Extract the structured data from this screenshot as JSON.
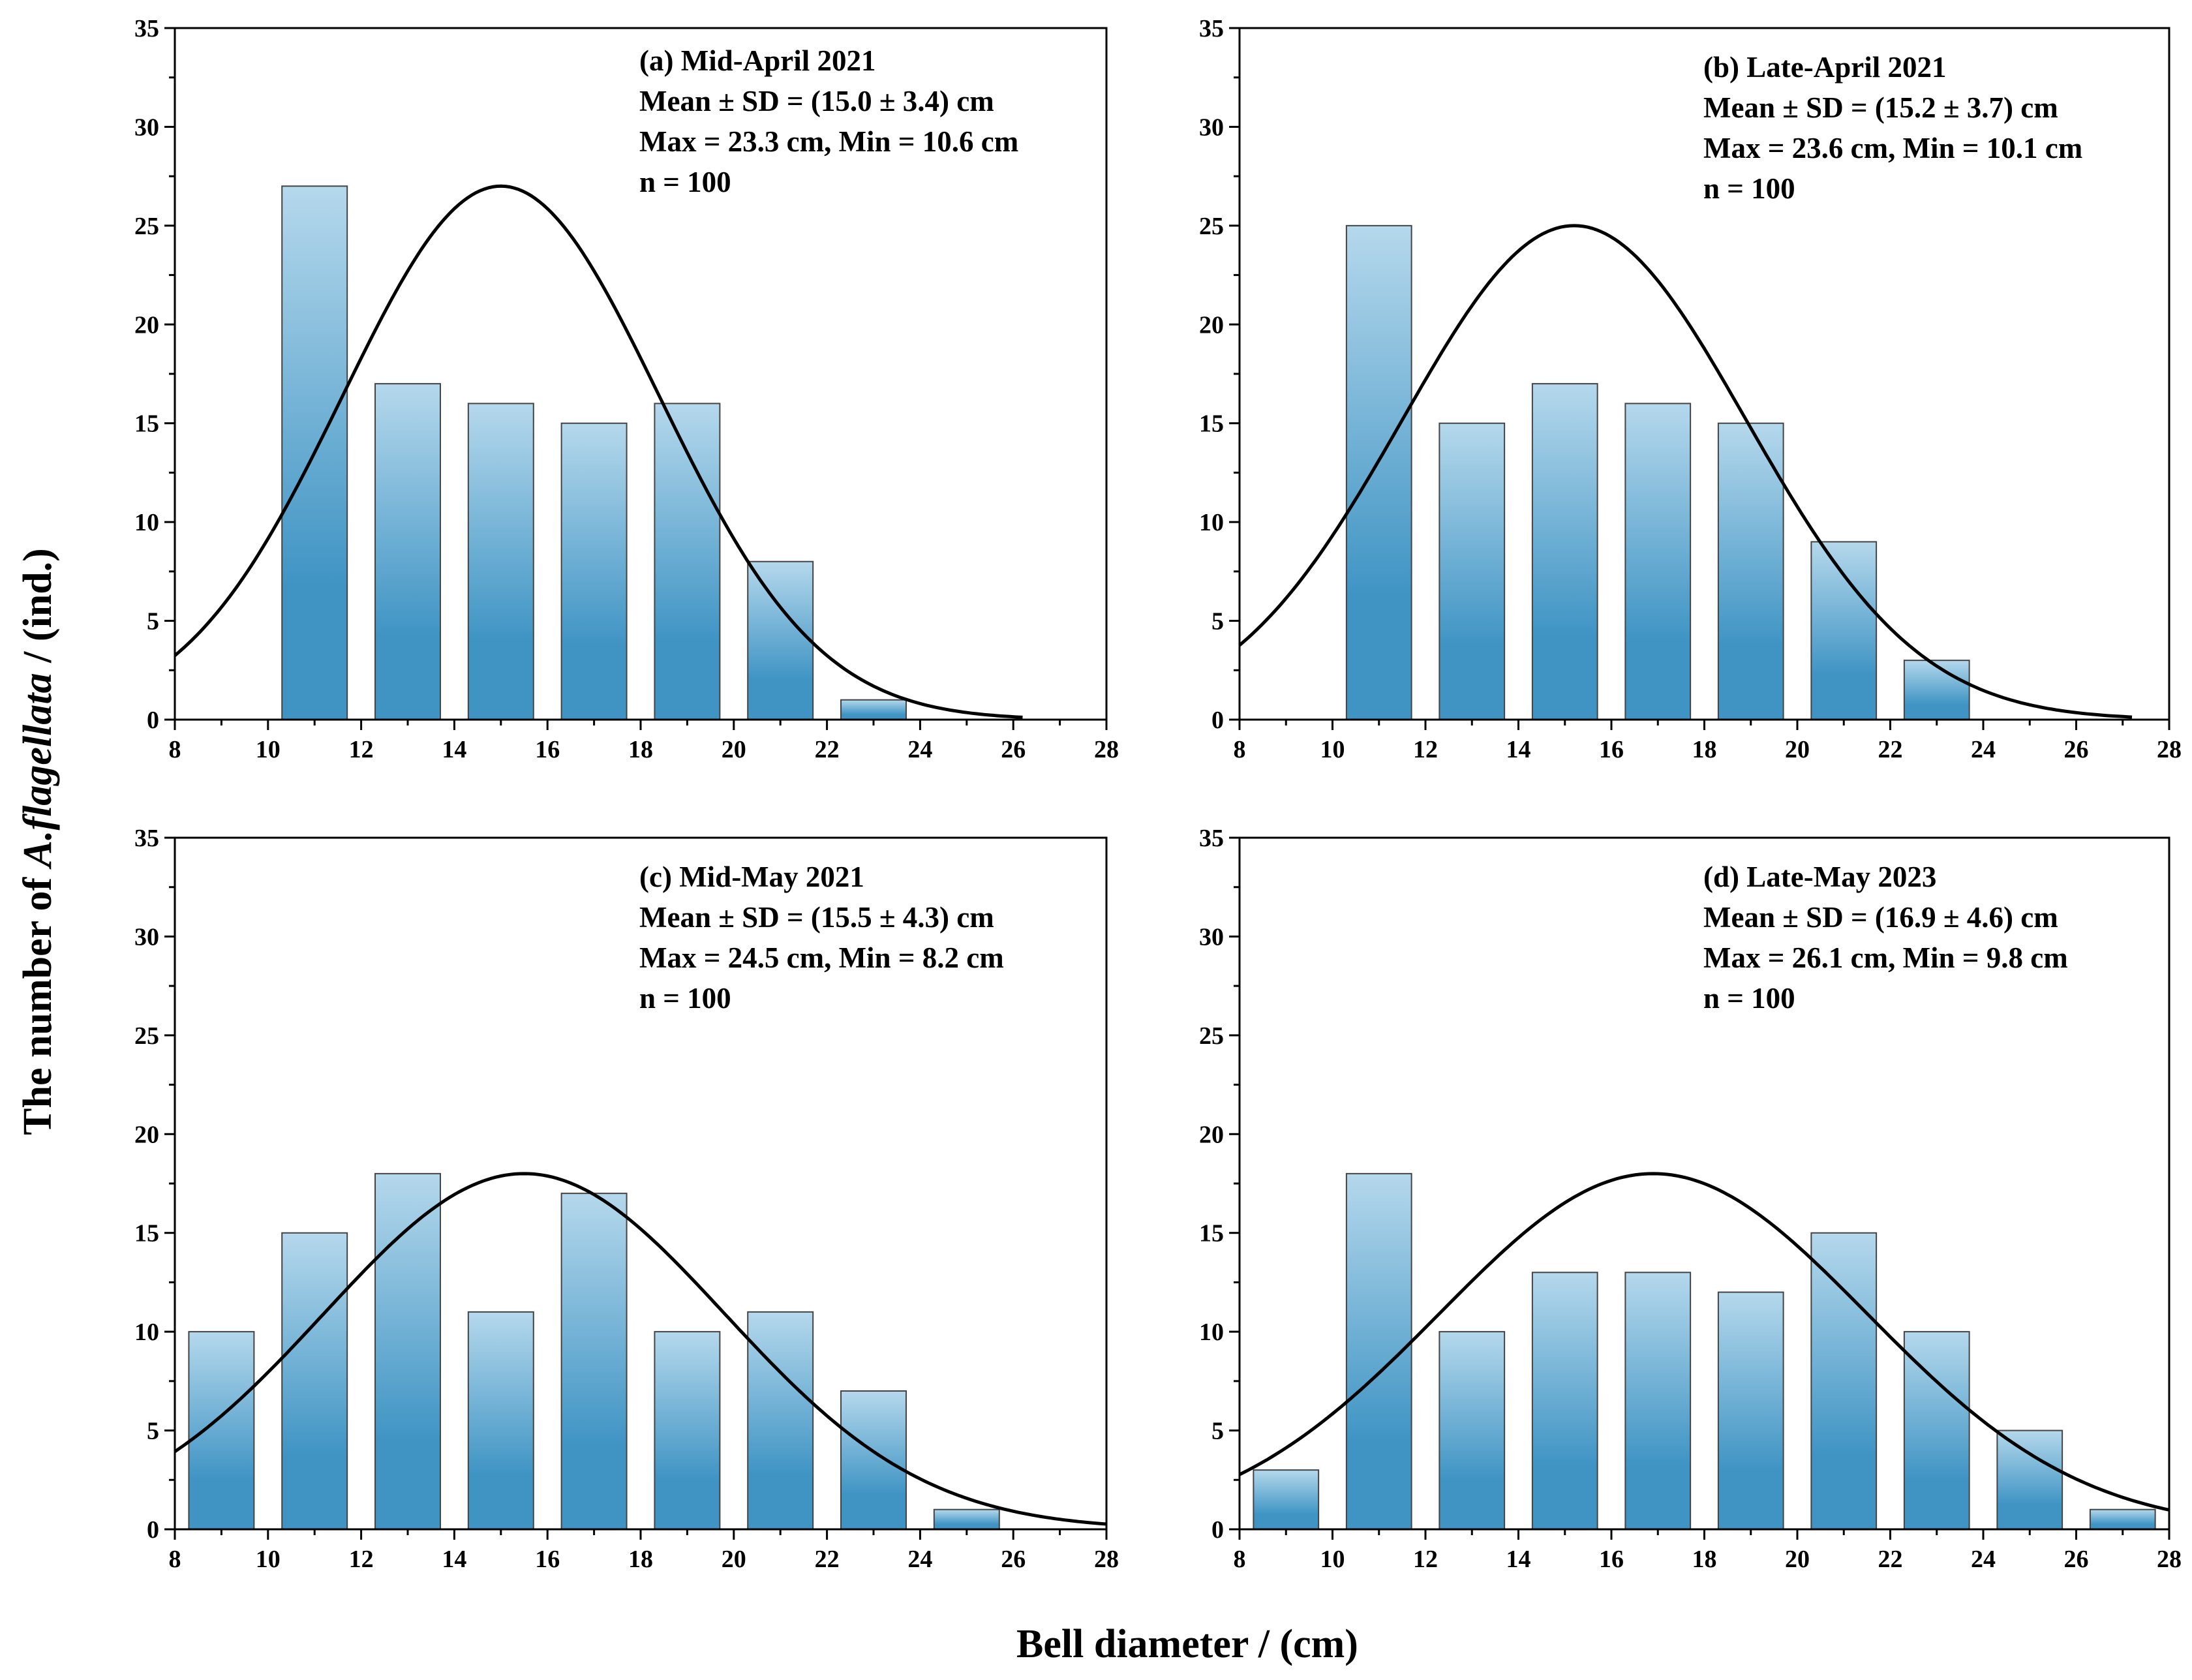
{
  "chart_data": {
    "type": "bar",
    "ylabel_prefix": "The number of ",
    "ylabel_italic": "A.flagellata",
    "ylabel_suffix": " / (ind.)",
    "xlabel": "Bell diameter / (cm)",
    "xlim": [
      8,
      28
    ],
    "ylim": [
      0,
      35
    ],
    "xticks": [
      8,
      10,
      12,
      14,
      16,
      18,
      20,
      22,
      24,
      26,
      28
    ],
    "yticks": [
      0,
      5,
      10,
      15,
      20,
      25,
      30,
      35
    ],
    "bin_width": 2,
    "bar_color_top": "#b5d8ec",
    "bar_color_bottom": "#3f94c4",
    "curve_color": "#000000",
    "panels": [
      {
        "id": "a",
        "annotation": [
          "(a) Mid-April 2021",
          "Mean ± SD = (15.0 ± 3.4) cm",
          "Max = 23.3 cm, Min = 10.6 cm",
          "n = 100"
        ],
        "bin_centers": [
          11,
          13,
          15,
          17,
          19,
          21,
          23
        ],
        "counts": [
          27,
          17,
          16,
          15,
          16,
          8,
          1
        ],
        "fit": {
          "mean": 15.0,
          "sd": 3.4,
          "peak": 27,
          "x_range": [
            8,
            26.2
          ]
        }
      },
      {
        "id": "b",
        "annotation": [
          "(b) Late-April 2021",
          "Mean ± SD = (15.2 ± 3.7) cm",
          "Max = 23.6 cm, Min = 10.1 cm",
          "n = 100"
        ],
        "bin_centers": [
          11,
          13,
          15,
          17,
          19,
          21,
          23
        ],
        "counts": [
          25,
          15,
          17,
          16,
          15,
          9,
          3
        ],
        "fit": {
          "mean": 15.2,
          "sd": 3.7,
          "peak": 25,
          "x_range": [
            8,
            27.2
          ]
        }
      },
      {
        "id": "c",
        "annotation": [
          "(c) Mid-May 2021",
          "Mean ± SD = (15.5 ± 4.3) cm",
          "Max = 24.5 cm, Min = 8.2 cm",
          "n = 100"
        ],
        "bin_centers": [
          9,
          11,
          13,
          15,
          17,
          19,
          21,
          23,
          25
        ],
        "counts": [
          10,
          15,
          18,
          11,
          17,
          10,
          11,
          7,
          1
        ],
        "fit": {
          "mean": 15.5,
          "sd": 4.3,
          "peak": 18,
          "x_range": [
            8,
            28
          ]
        }
      },
      {
        "id": "d",
        "annotation": [
          "(d) Late-May 2023",
          "Mean ± SD = (16.9 ± 4.6) cm",
          "Max = 26.1 cm, Min = 9.8 cm",
          "n = 100"
        ],
        "bin_centers": [
          9,
          11,
          13,
          15,
          17,
          19,
          21,
          23,
          25,
          27
        ],
        "counts": [
          3,
          18,
          10,
          13,
          13,
          12,
          15,
          10,
          5,
          1
        ],
        "fit": {
          "mean": 16.9,
          "sd": 4.6,
          "peak": 18,
          "x_range": [
            8,
            28
          ]
        }
      }
    ]
  }
}
